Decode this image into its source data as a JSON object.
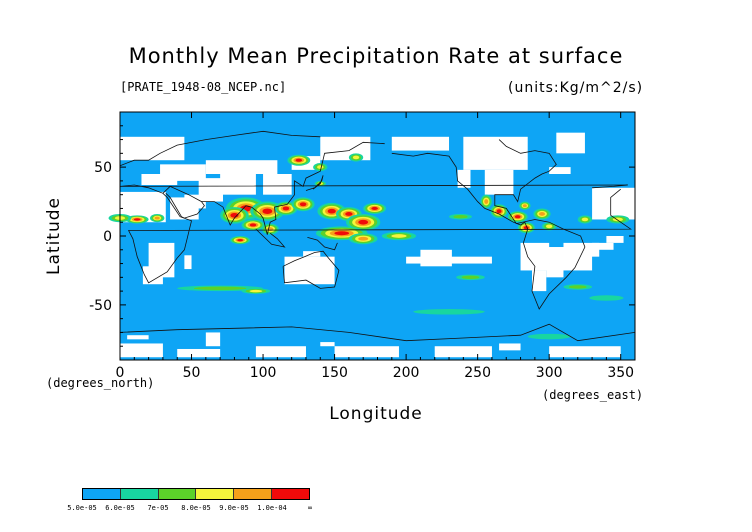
{
  "header": {
    "title": "Monthly Mean Precipitation Rate at surface",
    "file": "[PRATE_1948-08_NCEP.nc]",
    "units": "(units:Kg/m^2/s)"
  },
  "axes": {
    "xlabel": "Longitude",
    "ylabel": "Latitude",
    "x_unit_label": "(degrees_east)",
    "y_unit_label": "(degrees_north)"
  },
  "chart_data": {
    "type": "heatmap",
    "title": "Monthly Mean Precipitation Rate at surface",
    "xlabel": "Longitude",
    "ylabel": "Latitude",
    "xlim": [
      0,
      360
    ],
    "ylim": [
      -90,
      90
    ],
    "x_ticks": [
      0,
      50,
      100,
      150,
      200,
      250,
      300,
      350
    ],
    "y_ticks": [
      -50,
      0,
      50
    ],
    "color_scale": {
      "levels": [
        "5.0e-05",
        "6.0e-05",
        "7e-05",
        "8.0e-05",
        "9.0e-05",
        "1.0e-04",
        "∞"
      ],
      "colors": [
        "#0ea5f5",
        "#18d6a0",
        "#5cd12a",
        "#f5f53c",
        "#f5a01a",
        "#f00a0a"
      ]
    },
    "features": [
      {
        "kind": "below_lowest_level",
        "color": "#ffffff"
      },
      {
        "kind": "highest_level",
        "color": "#f00a0a"
      }
    ]
  }
}
